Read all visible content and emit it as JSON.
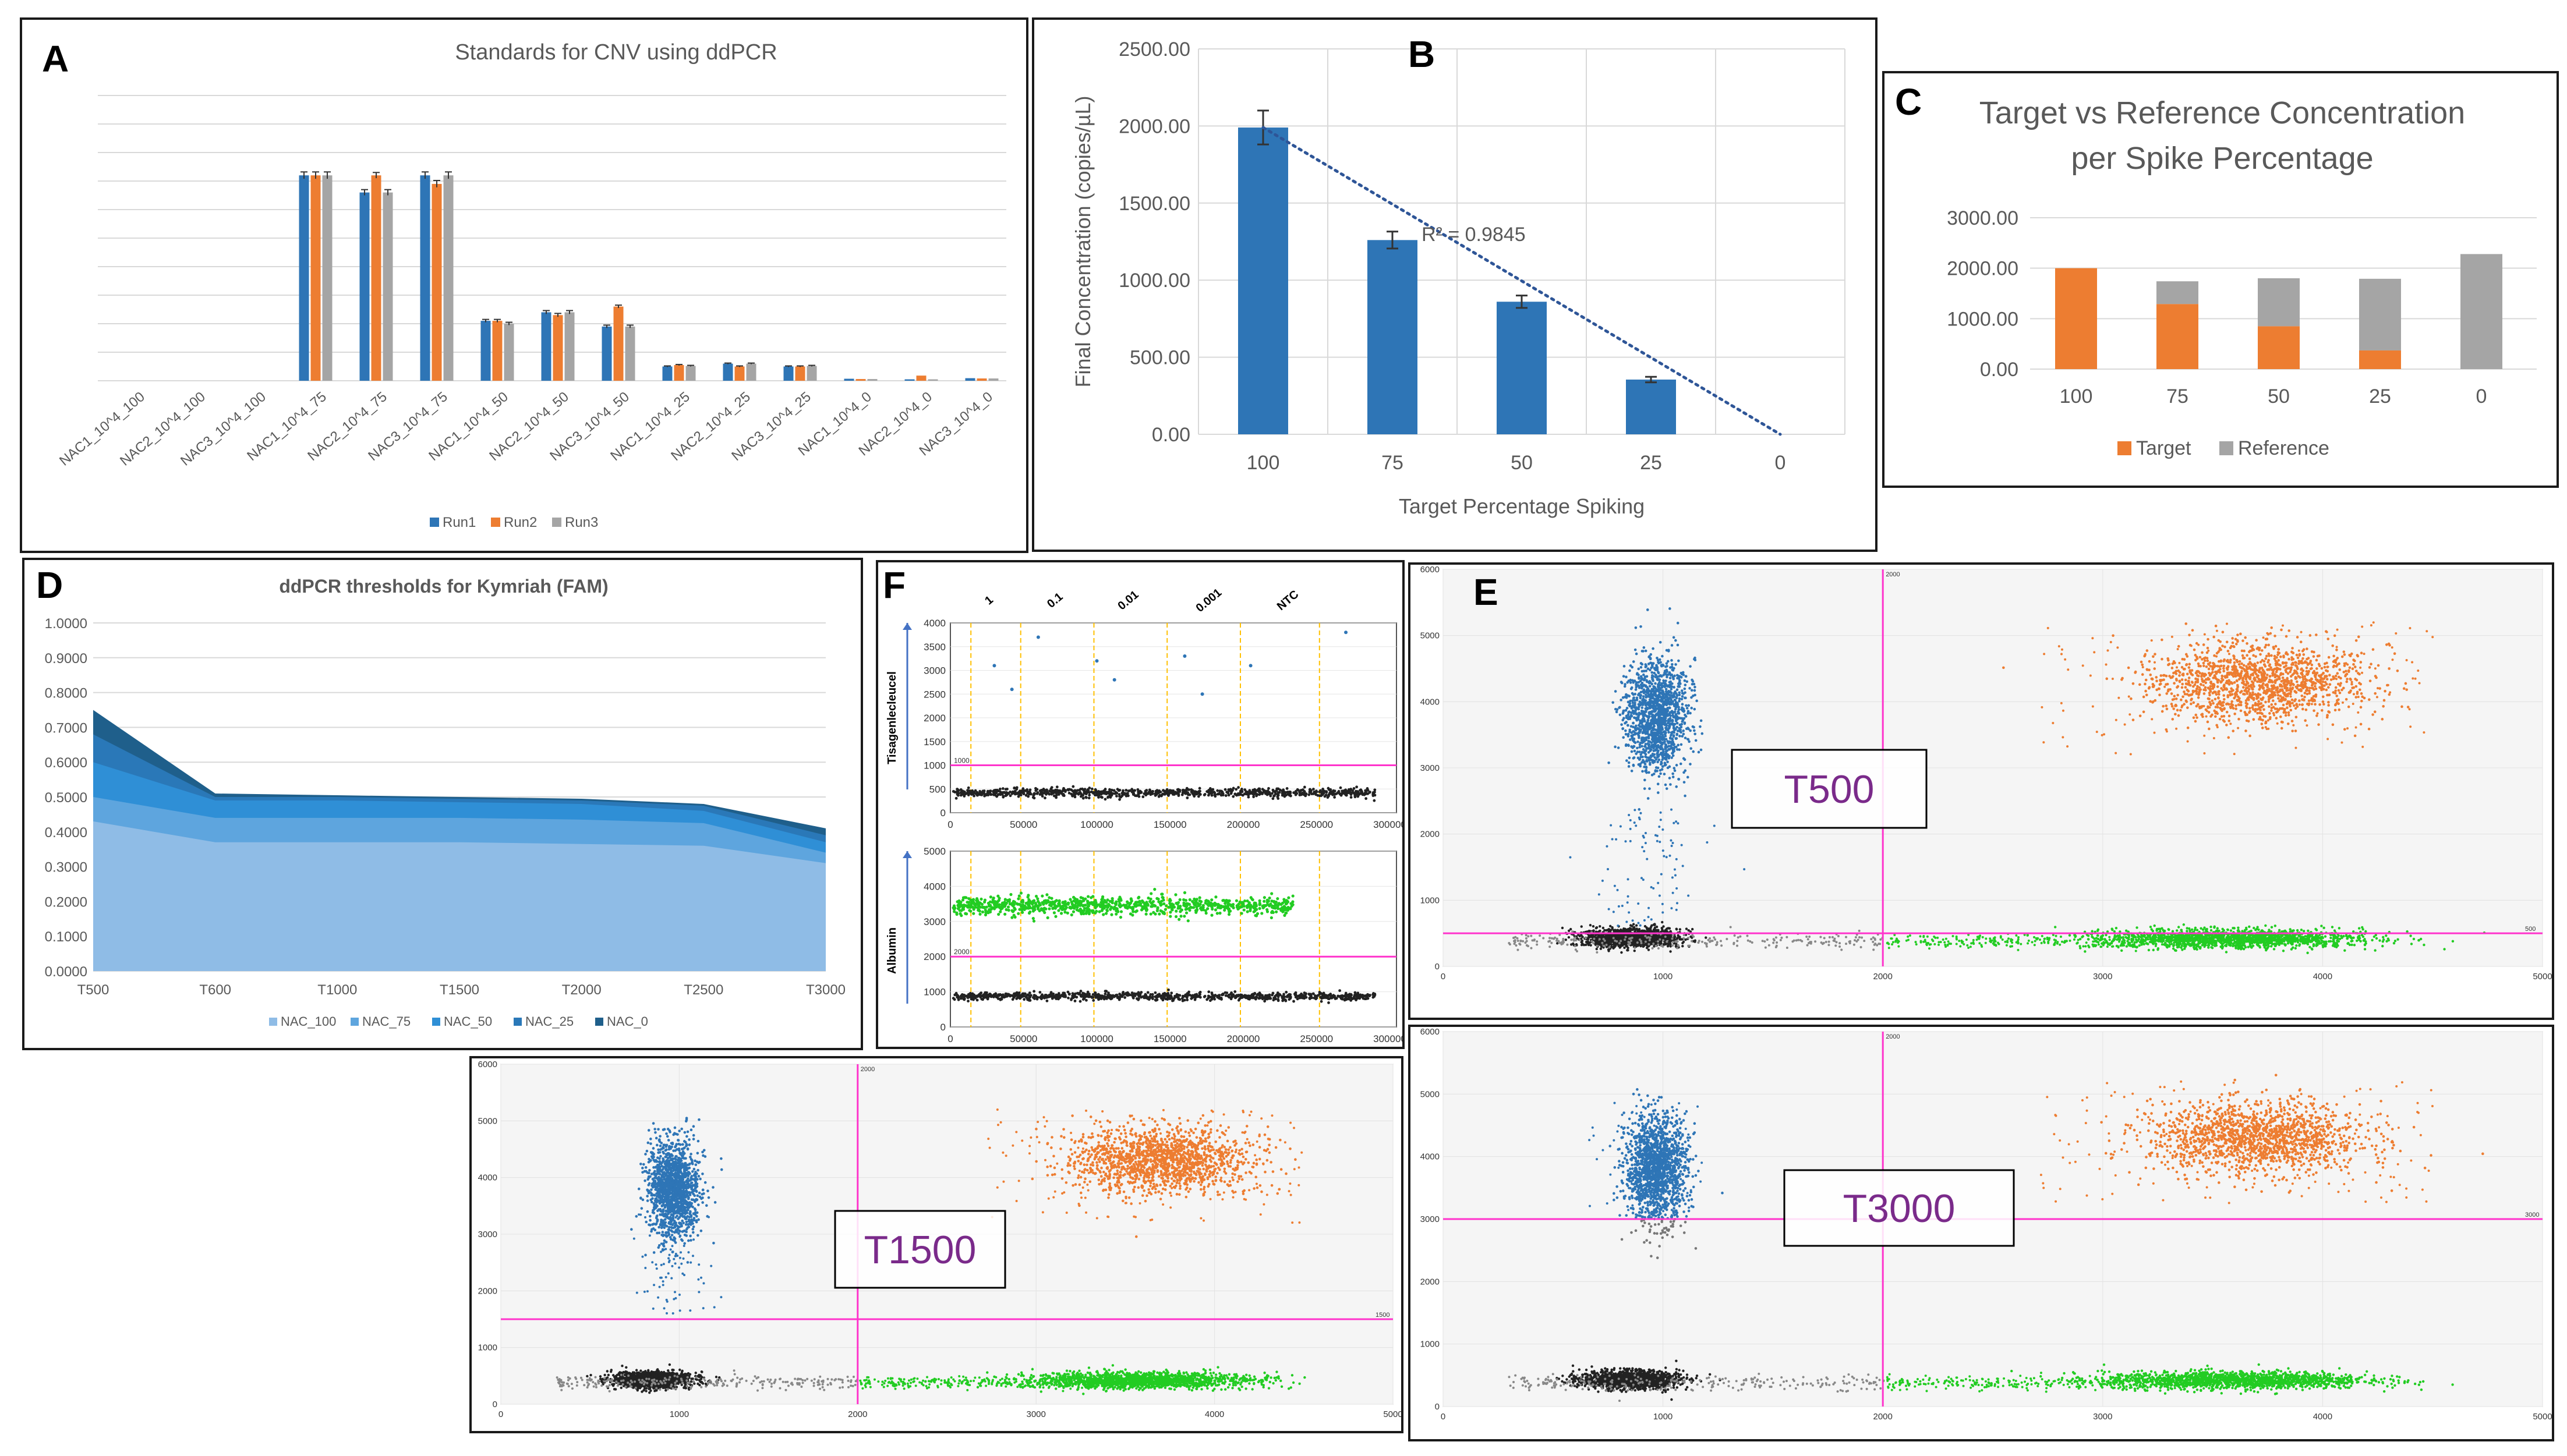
{
  "colors": {
    "blue": "#2e75b6",
    "orange": "#ed7d31",
    "gray": "#a5a5a5",
    "green": "#22cc22",
    "magenta": "#ff33cc",
    "black": "#222222",
    "dark_blue": "#1f5f8b"
  },
  "chart_data": [
    {
      "panel": "A",
      "type": "bar",
      "title": "Standards for CNV using ddPCR",
      "categories": [
        "NAC1_10^4_100",
        "NAC2_10^4_100",
        "NAC3_10^4_100",
        "NAC1_10^4_75",
        "NAC2_10^4_75",
        "NAC3_10^4_75",
        "NAC1_10^4_50",
        "NAC2_10^4_50",
        "NAC3_10^4_50",
        "NAC1_10^4_25",
        "NAC2_10^4_25",
        "NAC3_10^4_25",
        "NAC1_10^4_0",
        "NAC2_10^4_0",
        "NAC3_10^4_0"
      ],
      "series": [
        {
          "name": "Run1",
          "values": [
            0,
            0,
            0,
            7.2,
            6.6,
            7.2,
            2.1,
            2.4,
            1.9,
            0.5,
            0.6,
            0.5,
            0.07,
            0.05,
            0.09
          ]
        },
        {
          "name": "Run2",
          "values": [
            0,
            0,
            0,
            7.2,
            7.2,
            6.9,
            2.1,
            2.3,
            2.6,
            0.55,
            0.5,
            0.5,
            0.06,
            0.18,
            0.08
          ]
        },
        {
          "name": "Run3",
          "values": [
            0,
            0,
            0,
            7.2,
            6.6,
            7.2,
            2.0,
            2.4,
            1.9,
            0.52,
            0.6,
            0.52,
            0.06,
            0.05,
            0.08
          ]
        }
      ],
      "errors": [
        0.35,
        0.35,
        0.35,
        0.12,
        0.1,
        0.12,
        0.05,
        0.06,
        0.05,
        0.02,
        0.02,
        0.02,
        0.01,
        0.01,
        0.01
      ],
      "ylim": [
        0,
        10
      ],
      "grid": true,
      "legend": "bottom"
    },
    {
      "panel": "B",
      "type": "bar",
      "categories": [
        "100",
        "75",
        "50",
        "25",
        "0"
      ],
      "values": [
        1990,
        1260,
        860,
        355,
        0
      ],
      "errors": [
        110,
        55,
        40,
        18,
        0
      ],
      "xlabel": "Target Percentage Spiking",
      "ylabel": "Final Concentration (copies/µL)",
      "ylim": [
        0,
        2500
      ],
      "yticks": [
        "0.00",
        "500.00",
        "1000.00",
        "1500.00",
        "2000.00",
        "2500.00"
      ],
      "trendline": {
        "x_from": 0,
        "y_from": 1990,
        "x_to": 4,
        "y_to": 0,
        "label": "R² = 0.9845"
      },
      "grid": true
    },
    {
      "panel": "C",
      "type": "bar",
      "title_lines": [
        "Target vs Reference Concentration",
        "per Spike Percentage"
      ],
      "categories": [
        "100",
        "75",
        "50",
        "25",
        "0"
      ],
      "series": [
        {
          "name": "Target",
          "values": [
            2000,
            1290,
            850,
            370,
            0
          ]
        },
        {
          "name": "Reference",
          "values": [
            0,
            450,
            950,
            1420,
            2280
          ]
        }
      ],
      "stacked": true,
      "ylim": [
        0,
        3000
      ],
      "yticks": [
        "0.00",
        "1000.00",
        "2000.00",
        "3000.00"
      ],
      "grid": true,
      "legend": "bottom"
    },
    {
      "panel": "D",
      "type": "area",
      "title": "ddPCR thresholds for Kymriah (FAM)",
      "categories": [
        "T500",
        "T600",
        "T1000",
        "T1500",
        "T2000",
        "T2500",
        "T3000"
      ],
      "series": [
        {
          "name": "NAC_100",
          "values": [
            0.43,
            0.37,
            0.37,
            0.37,
            0.365,
            0.36,
            0.31
          ]
        },
        {
          "name": "NAC_75",
          "values": [
            0.5,
            0.44,
            0.44,
            0.44,
            0.435,
            0.425,
            0.34
          ]
        },
        {
          "name": "NAC_50",
          "values": [
            0.6,
            0.49,
            0.49,
            0.485,
            0.48,
            0.46,
            0.37
          ]
        },
        {
          "name": "NAC_25",
          "values": [
            0.68,
            0.5,
            0.5,
            0.495,
            0.49,
            0.475,
            0.39
          ]
        },
        {
          "name": "NAC_0",
          "values": [
            0.75,
            0.51,
            0.505,
            0.5,
            0.495,
            0.48,
            0.41
          ]
        }
      ],
      "ylim": [
        0,
        1
      ],
      "yticks": [
        "0.0000",
        "0.1000",
        "0.2000",
        "0.3000",
        "0.4000",
        "0.5000",
        "0.6000",
        "0.7000",
        "0.8000",
        "0.9000",
        "1.0000"
      ],
      "grid": true,
      "legend": "bottom"
    },
    {
      "panel": "F",
      "type": "scatter",
      "dilution_labels": [
        "1",
        "0.1",
        "0.01",
        "0.001",
        "NTC"
      ],
      "top_ylabel": "Tisagenlecleucel",
      "bottom_ylabel": "Albumin",
      "xticks": [
        "0",
        "50000",
        "100000",
        "150000",
        "200000",
        "250000",
        "300000"
      ],
      "top_yticks": [
        "0",
        "500",
        "1000",
        "1500",
        "2000",
        "2500",
        "3000",
        "3500",
        "4000"
      ],
      "bottom_yticks": [
        "0",
        "1000",
        "2000",
        "3000",
        "4000",
        "5000"
      ],
      "top_threshold": 1000,
      "bottom_threshold": 2000,
      "top_threshold_label": "1000",
      "bottom_threshold_label": "2000"
    },
    {
      "panel": "E",
      "type": "scatter",
      "label": "T500",
      "xlim": [
        0,
        5000
      ],
      "ylim": [
        0,
        6000
      ],
      "xticks": [
        "0",
        "1000",
        "2000",
        "3000",
        "4000",
        "5000"
      ],
      "yticks": [
        "0",
        "1000",
        "2000",
        "3000",
        "4000",
        "5000",
        "6000"
      ],
      "vline": 2000,
      "hline": 500,
      "vline_label": "2000",
      "hline_label": "500"
    },
    {
      "panel": "E2",
      "type": "scatter",
      "label": "T1500",
      "xlim": [
        0,
        5000
      ],
      "ylim": [
        0,
        6000
      ],
      "xticks": [
        "0",
        "1000",
        "2000",
        "3000",
        "4000",
        "5000"
      ],
      "yticks": [
        "0",
        "1000",
        "2000",
        "3000",
        "4000",
        "5000",
        "6000"
      ],
      "vline": 2000,
      "hline": 1500,
      "vline_label": "2000",
      "hline_label": "1500"
    },
    {
      "panel": "E3",
      "type": "scatter",
      "label": "T3000",
      "xlim": [
        0,
        5000
      ],
      "ylim": [
        0,
        6000
      ],
      "xticks": [
        "0",
        "1000",
        "2000",
        "3000",
        "4000",
        "5000"
      ],
      "yticks": [
        "0",
        "1000",
        "2000",
        "3000",
        "4000",
        "5000",
        "6000"
      ],
      "vline": 2000,
      "hline": 3000,
      "vline_label": "2000",
      "hline_label": "3000"
    }
  ],
  "panel_letters": {
    "a": "A",
    "b": "B",
    "c": "C",
    "d": "D",
    "e": "E",
    "f": "F"
  }
}
